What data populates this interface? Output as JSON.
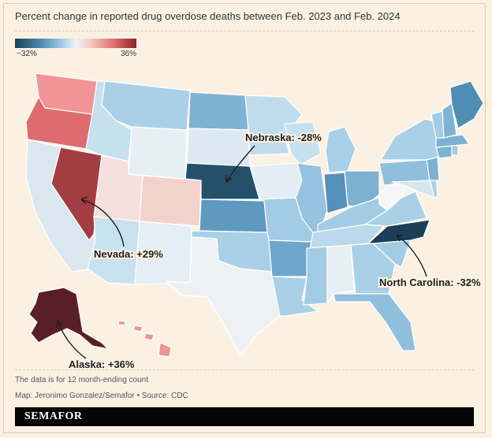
{
  "title": "Percent change in reported drug overdose deaths between Feb. 2023 and Feb. 2024",
  "legend": {
    "min_label": "−32%",
    "max_label": "36%",
    "min_value": -32,
    "max_value": 36,
    "min_color": "#1c3f57",
    "max_color": "#8c2228"
  },
  "callouts": [
    {
      "state": "Nebraska",
      "label": "Nebraska: -28%",
      "value": -28
    },
    {
      "state": "Nevada",
      "label": "Nevada: +29%",
      "value": 29
    },
    {
      "state": "North Carolina",
      "label": "North Carolina: -32%",
      "value": -32
    },
    {
      "state": "Alaska",
      "label": "Alaska: +36%",
      "value": 36
    }
  ],
  "states": {
    "WA": "#f09495",
    "OR": "#df6c6f",
    "CA": "#dae7ef",
    "NV": "#a33d41",
    "ID": "#c6e0ee",
    "MT": "#a9d0e7",
    "WY": "#e6eff4",
    "UT": "#f6e0dd",
    "AZ": "#c8e1ef",
    "CO": "#f4d2cc",
    "NM": "#e4eef4",
    "ND": "#7fb3d3",
    "SD": "#dde9f0",
    "NE": "#25506b",
    "KS": "#5e99c0",
    "OK": "#a9d0e7",
    "TX": "#eef1f3",
    "MN": "#c0dcec",
    "IA": "#e3edf3",
    "MO": "#a3cce4",
    "AR": "#6ea7ca",
    "LA": "#a9d0e7",
    "WI": "#c6e0ee",
    "IL": "#96c3df",
    "MS": "#a3cce4",
    "MI": "#a9d0e7",
    "IN": "#5591ba",
    "OH": "#7cb1d2",
    "KY": "#a3cce4",
    "TN": "#bad9eb",
    "AL": "#e6eff4",
    "GA": "#a9d0e7",
    "FL": "#8fbfdc",
    "SC": "#a3cce4",
    "NC": "#1c3f57",
    "VA": "#a9d0e7",
    "WV": "#f6f6f6",
    "PA": "#8fbfdc",
    "NY": "#a9d0e7",
    "VT": "#a3cce4",
    "NH": "#7fb3d3",
    "ME": "#4f8db3",
    "MA": "#7cb1d2",
    "CT": "#7fb3d3",
    "RI": "#a3cce4",
    "NJ": "#7cb1d2",
    "DE": "#a9d0e7",
    "MD": "#d6e7f1",
    "AK": "#5a1f26",
    "HI": "#f09495"
  },
  "note": "The data is for 12 month-ending count",
  "credit": "Map: Jeronimo Gonzalez/Semafor • Source: CDC",
  "brand": "SEMAFOR"
}
